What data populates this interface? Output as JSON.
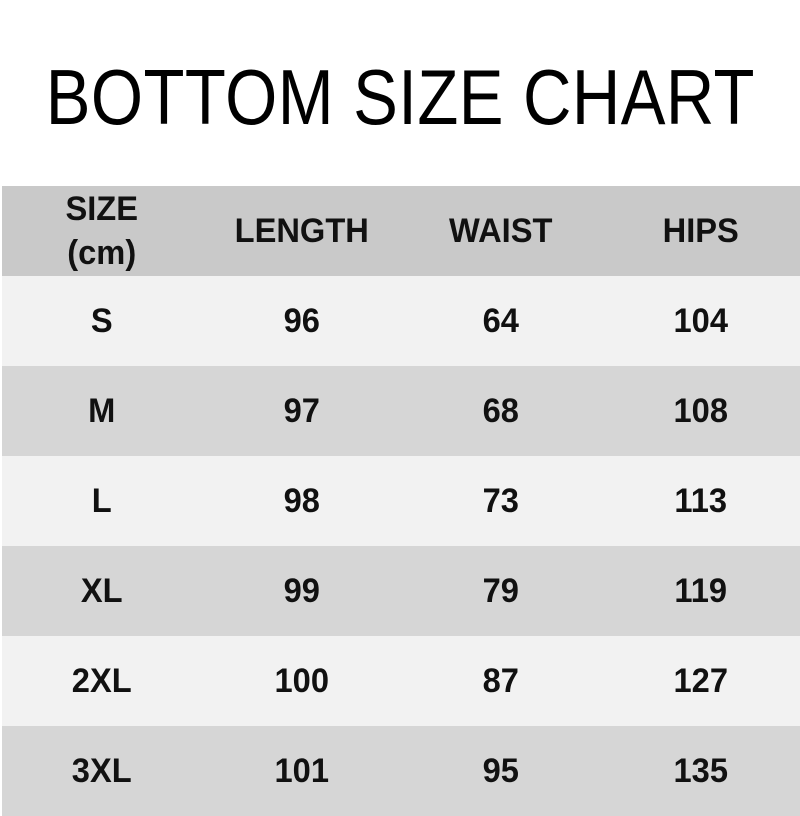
{
  "title": "BOTTOM SIZE CHART",
  "colors": {
    "page_bg": "#ffffff",
    "header_bg": "#c9c9c9",
    "row_light_bg": "#f2f2f2",
    "row_dark_bg": "#d6d6d6",
    "text": "#111111",
    "title_text": "#000000"
  },
  "chart_data": {
    "type": "table",
    "title": "BOTTOM SIZE CHART",
    "unit": "cm",
    "columns": [
      "SIZE (cm)",
      "LENGTH",
      "WAIST",
      "HIPS"
    ],
    "header": {
      "size_line1": "SIZE",
      "size_line2": "(cm)",
      "length": "LENGTH",
      "waist": "WAIST",
      "hips": "HIPS"
    },
    "rows": [
      {
        "size": "S",
        "length": "96",
        "waist": "64",
        "hips": "104"
      },
      {
        "size": "M",
        "length": "97",
        "waist": "68",
        "hips": "108"
      },
      {
        "size": "L",
        "length": "98",
        "waist": "73",
        "hips": "113"
      },
      {
        "size": "XL",
        "length": "99",
        "waist": "79",
        "hips": "119"
      },
      {
        "size": "2XL",
        "length": "100",
        "waist": "87",
        "hips": "127"
      },
      {
        "size": "3XL",
        "length": "101",
        "waist": "95",
        "hips": "135"
      }
    ]
  }
}
